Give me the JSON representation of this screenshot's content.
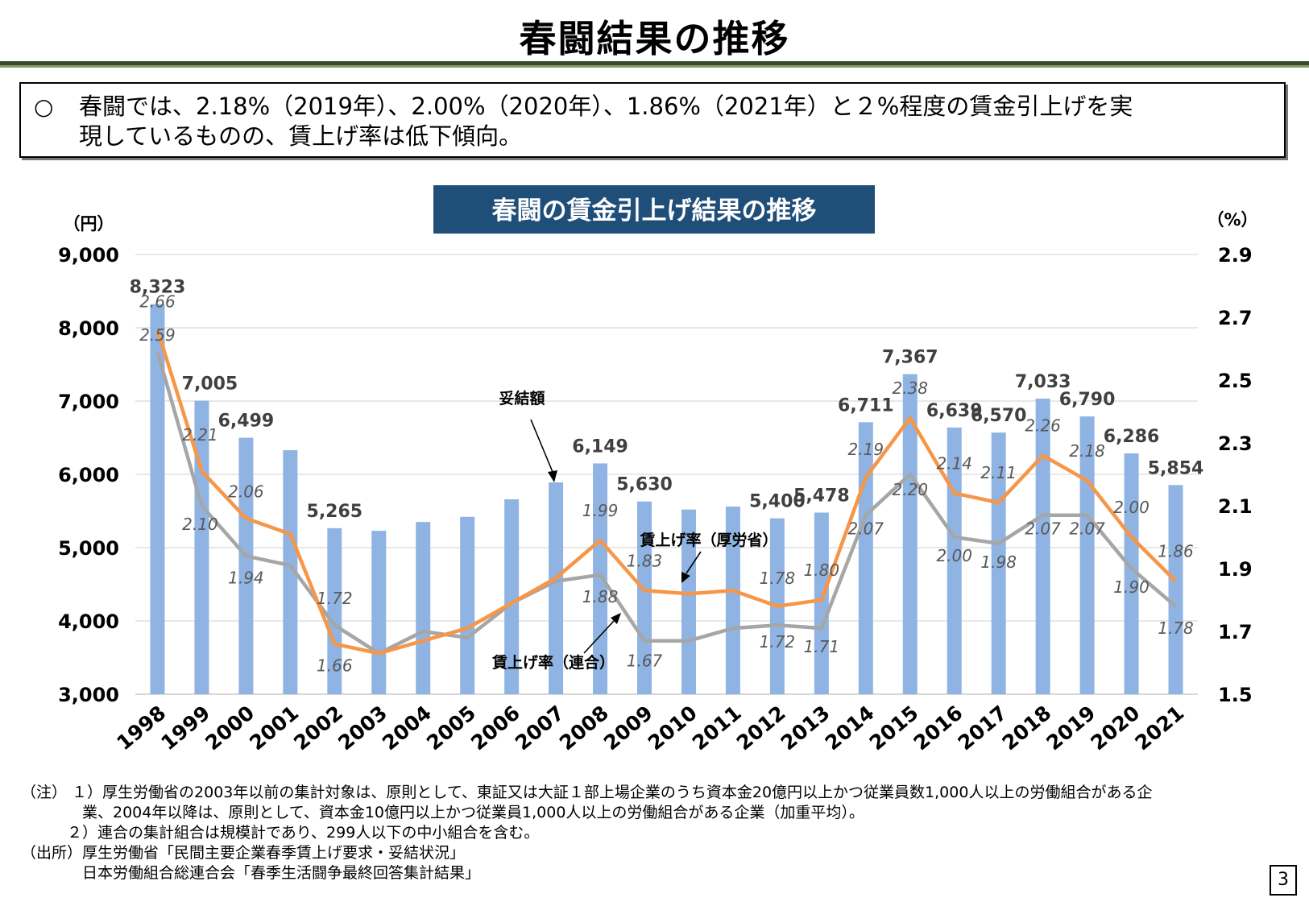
{
  "page": {
    "title": "春闘結果の推移",
    "summary_bullet": "○",
    "summary_line1": "春闘では、2.18%（2019年）、2.00%（2020年）、1.86%（2021年）と２%程度の賃金引上げを実",
    "summary_line2": "現しているものの、賃上げ率は低下傾向。",
    "page_number": "3"
  },
  "notes": {
    "line1": "（注） １）厚生労働省の2003年以前の集計対象は、原則として、東証又は大証１部上場企業のうち資本金20億円以上かつ従業員数1,000人以上の労働組合がある企",
    "line2": "　　　　業、2004年以降は、原則として、資本金10億円以上かつ従業員1,000人以上の労働組合がある企業（加重平均）。",
    "line3": "　　　２）連合の集計組合は規模計であり、299人以下の中小組合を含む。",
    "line4": "（出所）厚生労働省「民間主要企業春季賃上げ要求・妥結状況」",
    "line5": "　　　　日本労働組合総連合会「春季生活闘争最終回答集計結果」"
  },
  "chart_data": {
    "type": "bar",
    "title": "春闘の賃金引上げ結果の推移",
    "ylabel": "（円）",
    "y2label": "（%）",
    "ylim": [
      3000,
      9000
    ],
    "y_ticks": [
      "3,000",
      "4,000",
      "5,000",
      "6,000",
      "7,000",
      "8,000",
      "9,000"
    ],
    "y2lim": [
      1.5,
      2.9
    ],
    "y2_ticks": [
      "1.5",
      "1.7",
      "1.9",
      "2.1",
      "2.3",
      "2.5",
      "2.7",
      "2.9"
    ],
    "grid": true,
    "categories": [
      "1998",
      "1999",
      "2000",
      "2001",
      "2002",
      "2003",
      "2004",
      "2005",
      "2006",
      "2007",
      "2008",
      "2009",
      "2010",
      "2011",
      "2012",
      "2013",
      "2014",
      "2015",
      "2016",
      "2017",
      "2018",
      "2019",
      "2020",
      "2021"
    ],
    "series": [
      {
        "name": "妥結額",
        "kind": "bar",
        "axis": "left",
        "color": "#8fb4e3",
        "values": [
          8323,
          7005,
          6499,
          6330,
          5265,
          5230,
          5350,
          5420,
          5660,
          5890,
          6149,
          5630,
          5520,
          5560,
          5400,
          5478,
          6711,
          7367,
          6639,
          6570,
          7033,
          6790,
          6286,
          5854
        ],
        "labels": [
          "8,323",
          "7,005",
          "6,499",
          "",
          "5,265",
          "",
          "",
          "",
          "",
          "",
          "6,149",
          "5,630",
          "",
          "",
          "5,400",
          "5,478",
          "6,711",
          "7,367",
          "6,639",
          "6,570",
          "7,033",
          "6,790",
          "6,286",
          "5,854"
        ]
      },
      {
        "name": "賃上げ率（厚労省）",
        "kind": "line",
        "axis": "right",
        "color": "#f79646",
        "values": [
          2.66,
          2.21,
          2.06,
          2.01,
          1.66,
          1.63,
          1.67,
          1.71,
          1.79,
          1.87,
          1.99,
          1.83,
          1.82,
          1.83,
          1.78,
          1.8,
          2.19,
          2.38,
          2.14,
          2.11,
          2.26,
          2.18,
          2.0,
          1.86
        ],
        "labels": [
          "2.66",
          "2.21",
          "2.06",
          "",
          "1.66",
          "",
          "",
          "",
          "",
          "",
          "1.99",
          "1.83",
          "",
          "",
          "1.78",
          "1.80",
          "2.19",
          "2.38",
          "2.14",
          "2.11",
          "2.26",
          "2.18",
          "2.00",
          "1.86"
        ]
      },
      {
        "name": "賃上げ率（連合）",
        "kind": "line",
        "axis": "right",
        "color": "#a6a6a6",
        "values": [
          2.59,
          2.1,
          1.94,
          1.91,
          1.72,
          1.63,
          1.7,
          1.68,
          1.79,
          1.86,
          1.88,
          1.67,
          1.67,
          1.71,
          1.72,
          1.71,
          2.07,
          2.2,
          2.0,
          1.98,
          2.07,
          2.07,
          1.9,
          1.78
        ],
        "labels": [
          "2.59",
          "2.10",
          "1.94",
          "",
          "1.72",
          "",
          "",
          "",
          "",
          "",
          "1.88",
          "1.67",
          "",
          "",
          "1.72",
          "1.71",
          "2.07",
          "2.20",
          "2.00",
          "1.98",
          "2.07",
          "2.07",
          "1.90",
          "1.78"
        ]
      }
    ],
    "annotations": [
      "妥結額",
      "賃上げ率（厚労省）",
      "賃上げ率（連合）"
    ]
  }
}
